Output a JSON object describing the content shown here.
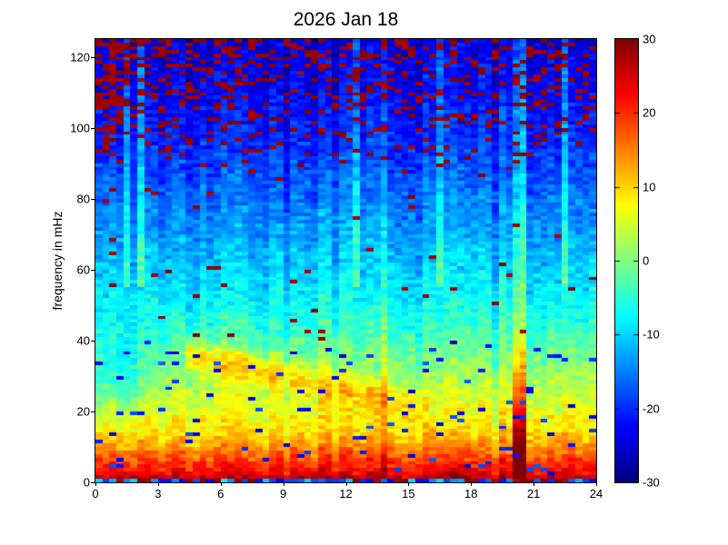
{
  "figure": {
    "title": "2026 Jan 18",
    "background_color": "#ffffff",
    "text_color": "#000000"
  },
  "chart_data": {
    "type": "heatmap",
    "title": "2026 Jan 18",
    "xlabel": "",
    "ylabel": "frequency in mHz",
    "xlim": [
      0,
      24
    ],
    "ylim": [
      0,
      125
    ],
    "x_ticks": [
      0,
      3,
      6,
      9,
      12,
      15,
      18,
      21,
      24
    ],
    "y_ticks": [
      0,
      20,
      40,
      60,
      80,
      100,
      120
    ],
    "colormap": "jet",
    "colorbar": {
      "min": -30,
      "max": 30,
      "ticks": [
        -30,
        -20,
        -10,
        0,
        10,
        20,
        30
      ]
    },
    "grid": {
      "cols": 72,
      "rows": 125
    },
    "intensity_model": {
      "seed": 1337,
      "clim": [
        -30,
        30
      ],
      "base_profile": [
        [
          0,
          -14
        ],
        [
          1.5,
          26
        ],
        [
          3,
          23
        ],
        [
          5,
          21
        ],
        [
          8,
          17
        ],
        [
          12,
          12
        ],
        [
          16,
          9
        ],
        [
          22,
          6
        ],
        [
          28,
          3
        ],
        [
          35,
          0
        ],
        [
          45,
          -5
        ],
        [
          55,
          -8.5
        ],
        [
          68,
          -12
        ],
        [
          80,
          -15.5
        ],
        [
          95,
          -19.5
        ],
        [
          110,
          -22.5
        ],
        [
          125,
          -24
        ]
      ],
      "noise_amp": 4.2,
      "col_sigma": 2.6,
      "col_streak_p": 0.1,
      "col_streak_amp": 4.5,
      "bottom_row": {
        "red_p": 0.3,
        "base": -8,
        "spread": 16
      },
      "ridge": {
        "t0": 4.5,
        "t1": 15.5,
        "f_start": 36,
        "slope": -1.35,
        "sigma": 4.5,
        "amp": 11,
        "fade": 0.55
      },
      "morning_dip": {
        "t": 1.0,
        "t_sigma": 1.6,
        "f": 30,
        "f_sigma": 13,
        "amp": -7
      },
      "event": {
        "t0": 19.9,
        "t1": 20.65,
        "amp": 24,
        "f_scale": 32,
        "floor": 6.5
      },
      "high_freq_streaks_t": [
        1.4,
        2.3,
        12.4,
        16.5,
        22.4
      ],
      "streak_f_min": 55,
      "streak_amp": 7,
      "red_speckle": {
        "high_f_start": 88,
        "high_p0": 0.04,
        "high_p_slope": 0.007,
        "mid_f_start": 40,
        "mid_p": 0.012,
        "left_boost": 2.2,
        "left_decay": 1.8
      },
      "blue_speckle": {
        "p": 0.04,
        "f_min": 2,
        "f_max": 45,
        "value": -17,
        "spread": 9
      }
    }
  }
}
